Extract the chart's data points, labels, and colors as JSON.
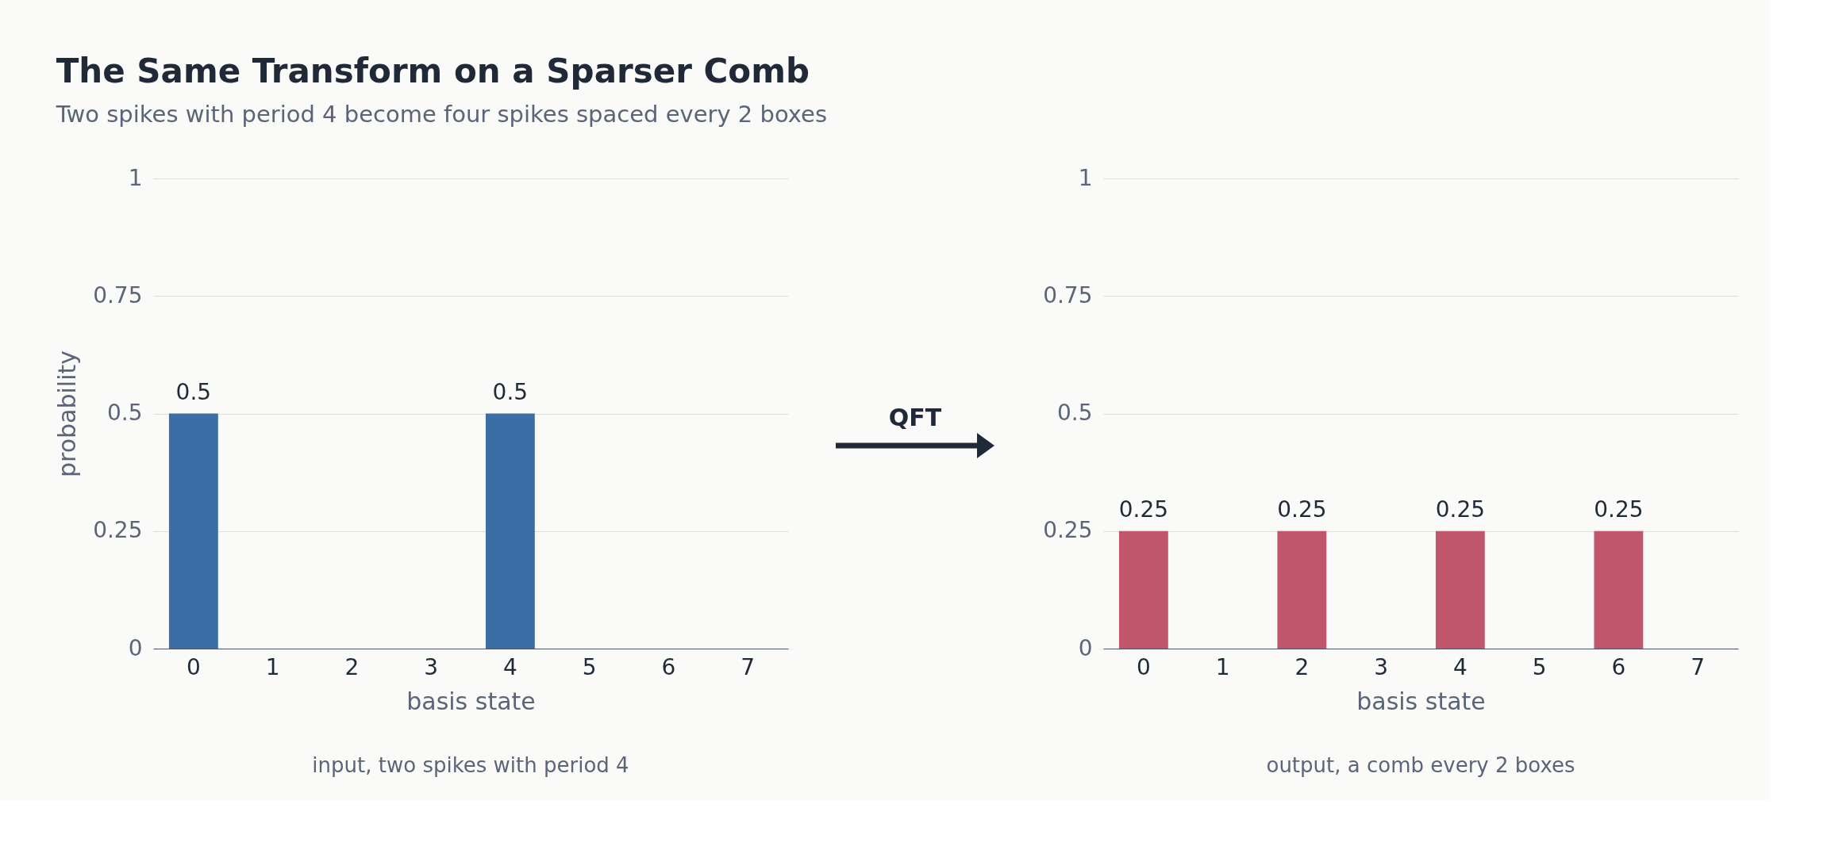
{
  "chart_data": [
    {
      "type": "bar",
      "title": "The Same Transform on a Sparser Comb",
      "subtitle": "Two spikes with period 4 become four spikes spaced every 2 boxes",
      "xlabel": "basis state",
      "ylabel": "probability",
      "categories": [
        "0",
        "1",
        "2",
        "3",
        "4",
        "5",
        "6",
        "7"
      ],
      "series": [
        {
          "color": "#3a6ea5",
          "values": [
            0.5,
            0,
            0,
            0,
            0.5,
            0,
            0,
            0
          ]
        }
      ],
      "value_labels": [
        "0.5",
        null,
        null,
        null,
        "0.5",
        null,
        null,
        null
      ],
      "ylim": [
        0,
        1
      ],
      "yticks": [
        0,
        0.25,
        0.5,
        0.75,
        1
      ],
      "grid": "y",
      "annotations": [
        "input, two spikes with period 4"
      ]
    },
    {
      "type": "other",
      "annotations": [
        "QFT"
      ]
    },
    {
      "type": "bar",
      "xlabel": "basis state",
      "categories": [
        "0",
        "1",
        "2",
        "3",
        "4",
        "5",
        "6",
        "7"
      ],
      "series": [
        {
          "color": "#c0566b",
          "values": [
            0.25,
            0,
            0.25,
            0,
            0.25,
            0,
            0.25,
            0
          ]
        }
      ],
      "value_labels": [
        "0.25",
        null,
        "0.25",
        null,
        "0.25",
        null,
        "0.25",
        null
      ],
      "ylim": [
        0,
        1
      ],
      "yticks": [
        0,
        0.25,
        0.5,
        0.75,
        1
      ],
      "grid": "y",
      "annotations": [
        "output, a comb every 2 boxes"
      ]
    }
  ]
}
